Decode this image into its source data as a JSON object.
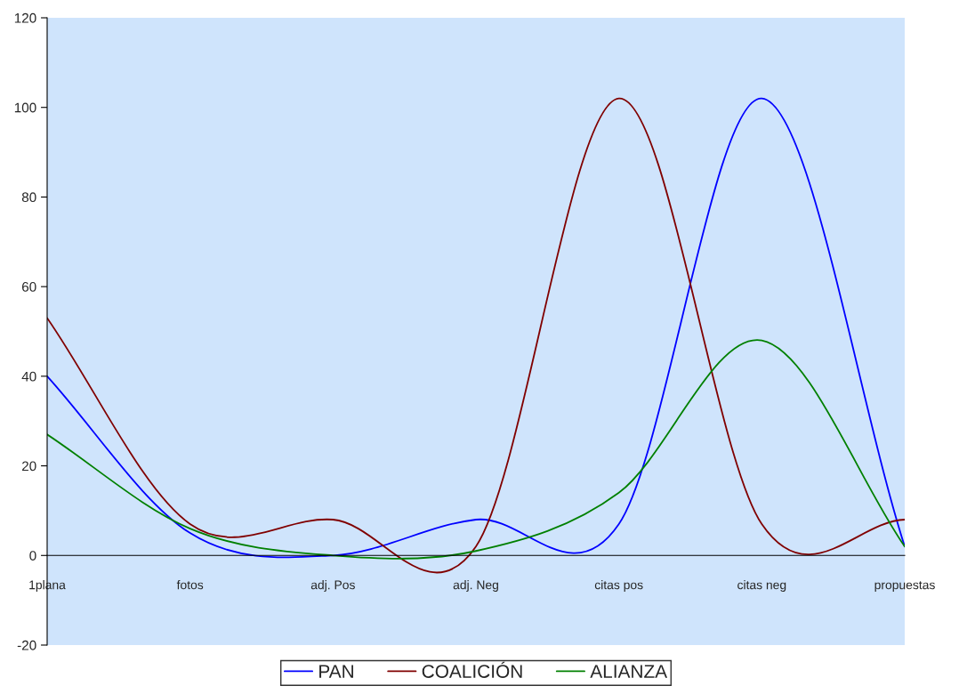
{
  "chart_data": {
    "type": "line",
    "categories": [
      "1plana",
      "fotos",
      "adj. Pos",
      "adj. Neg",
      "citas pos",
      "citas neg",
      "propuestas"
    ],
    "series": [
      {
        "name": "PAN",
        "color": "#0000ff",
        "values": [
          40,
          5,
          0,
          8,
          7,
          102,
          2
        ]
      },
      {
        "name": "COALICIÓN",
        "color": "#800000",
        "values": [
          53,
          7,
          8,
          2,
          102,
          7,
          8
        ]
      },
      {
        "name": "ALIANZA",
        "color": "#008000",
        "values": [
          27,
          6,
          0,
          1,
          14,
          48,
          2
        ]
      }
    ],
    "ylim": [
      -20,
      120
    ],
    "yticks": [
      -20,
      0,
      20,
      40,
      60,
      80,
      100,
      120
    ],
    "grid": false,
    "legend": "bottom",
    "marker": "none",
    "line_style": "solid"
  }
}
